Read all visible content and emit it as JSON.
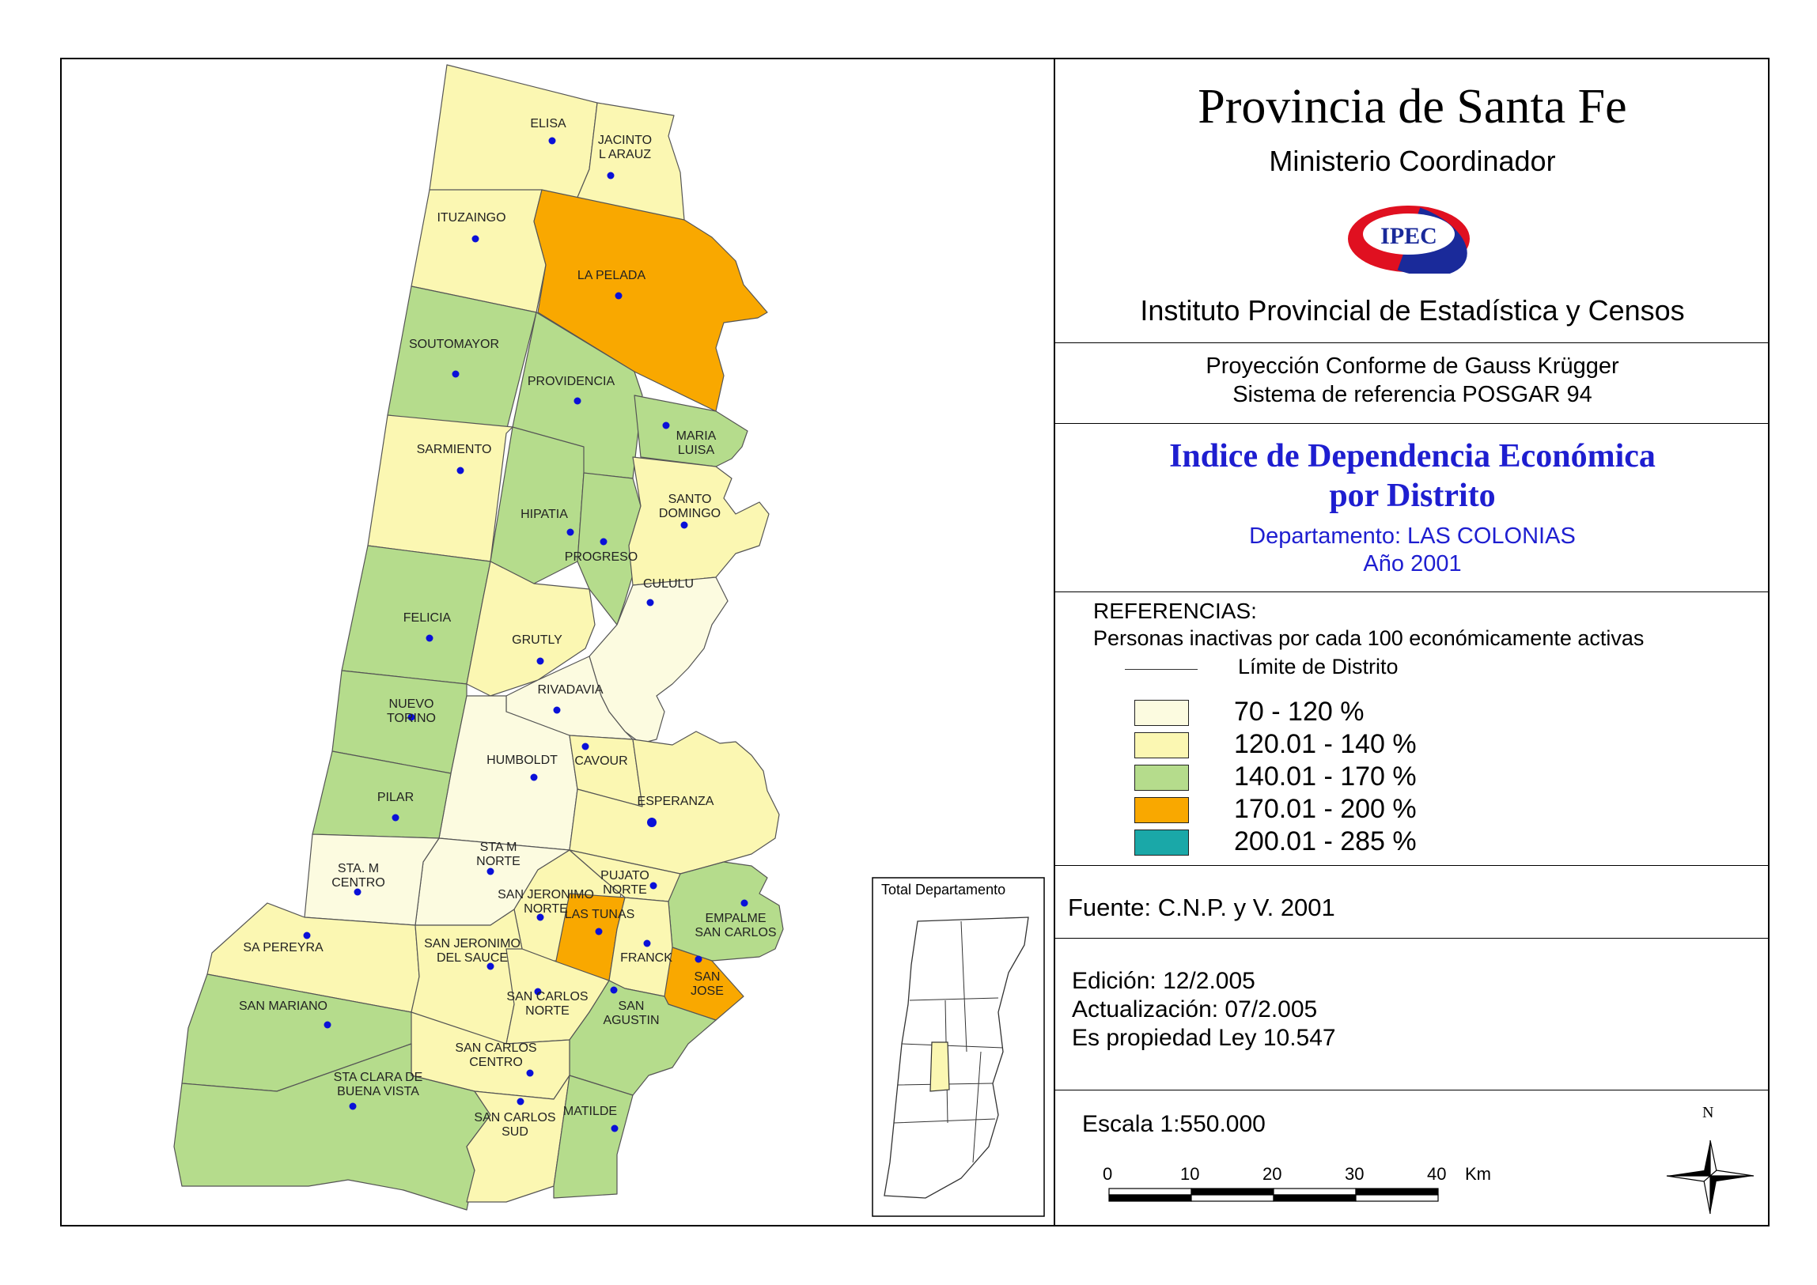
{
  "header": {
    "title": "Provincia de Santa Fe",
    "subtitle": "Ministerio Coordinador",
    "logo_text": "IPEC",
    "institute": "Instituto Provincial de Estadística y Censos"
  },
  "projection": {
    "line1": "Proyección Conforme de Gauss Krügger",
    "line2": "Sistema de referencia POSGAR 94"
  },
  "map_title": {
    "line1": "Indice de Dependencia Económica",
    "line2": "por Distrito",
    "department": "Departamento:  LAS COLONIAS",
    "year": "Año 2001"
  },
  "legend": {
    "heading": "REFERENCIAS:",
    "description": "Personas inactivas por cada 100 económicamente activas",
    "boundary_label": "Límite de  Distrito",
    "classes": [
      {
        "label": "70 - 120 %",
        "color": "#fcfbe0"
      },
      {
        "label": "120.01 - 140 %",
        "color": "#fbf7b2"
      },
      {
        "label": "140.01 - 170 %",
        "color": "#b5dc8c"
      },
      {
        "label": "170.01 - 200 %",
        "color": "#f9a800"
      },
      {
        "label": "200.01 - 285 %",
        "color": "#1aa8a8"
      }
    ]
  },
  "source": "Fuente:  C.N.P. y V. 2001",
  "edition": {
    "edicion": "Edición:  12/2.005",
    "actualizacion": "Actualización:  07/2.005",
    "propiedad": "Es propiedad Ley 10.547"
  },
  "scale": {
    "label": "Escala 1:550.000",
    "ticks": [
      "0",
      "10",
      "20",
      "30",
      "40"
    ],
    "unit": "Km"
  },
  "north": "N",
  "inset": {
    "title": "Total Departamento"
  },
  "districts": [
    {
      "name": "ELISA",
      "class": 1
    },
    {
      "name": "JACINTO L ARAUZ",
      "class": 1,
      "label_lines": [
        "JACINTO",
        "L ARAUZ"
      ]
    },
    {
      "name": "ITUZAINGO",
      "class": 1
    },
    {
      "name": "LA PELADA",
      "class": 3
    },
    {
      "name": "SOUTOMAYOR",
      "class": 2
    },
    {
      "name": "PROVIDENCIA",
      "class": 2
    },
    {
      "name": "MARIA LUISA",
      "class": 2,
      "label_lines": [
        "MARIA",
        "LUISA"
      ]
    },
    {
      "name": "SARMIENTO",
      "class": 1
    },
    {
      "name": "HIPATIA",
      "class": 2
    },
    {
      "name": "PROGRESO",
      "class": 2
    },
    {
      "name": "SANTO DOMINGO",
      "class": 1,
      "label_lines": [
        "SANTO",
        "DOMINGO"
      ]
    },
    {
      "name": "CULULU",
      "class": 0
    },
    {
      "name": "FELICIA",
      "class": 2
    },
    {
      "name": "GRUTLY",
      "class": 1
    },
    {
      "name": "RIVADAVIA",
      "class": 0
    },
    {
      "name": "NUEVO TORINO",
      "class": 2,
      "label_lines": [
        "NUEVO",
        "TORINO"
      ]
    },
    {
      "name": "HUMBOLDT",
      "class": 0
    },
    {
      "name": "CAVOUR",
      "class": 1
    },
    {
      "name": "PILAR",
      "class": 2
    },
    {
      "name": "ESPERANZA",
      "class": 1
    },
    {
      "name": "STA M NORTE",
      "class": 0,
      "label_lines": [
        "STA M",
        "NORTE"
      ]
    },
    {
      "name": "STA. M CENTRO",
      "class": 0,
      "label_lines": [
        "STA. M",
        "CENTRO"
      ]
    },
    {
      "name": "SAN JERONIMO NORTE",
      "class": 1,
      "label_lines": [
        "SAN JERONIMO",
        "NORTE"
      ]
    },
    {
      "name": "PUJATO NORTE",
      "class": 1,
      "label_lines": [
        "PUJATO",
        "NORTE"
      ]
    },
    {
      "name": "LAS TUNAS",
      "class": 3
    },
    {
      "name": "EMPALME SAN CARLOS",
      "class": 2,
      "label_lines": [
        "EMPALME",
        "SAN CARLOS"
      ]
    },
    {
      "name": "SA PEREYRA",
      "class": 1
    },
    {
      "name": "SAN JERONIMO DEL SAUCE",
      "class": 1,
      "label_lines": [
        "SAN JERONIMO",
        "DEL SAUCE"
      ]
    },
    {
      "name": "FRANCK",
      "class": 1
    },
    {
      "name": "SAN JOSE",
      "class": 3,
      "label_lines": [
        "SAN",
        "JOSE"
      ]
    },
    {
      "name": "SAN MARIANO",
      "class": 2
    },
    {
      "name": "SAN CARLOS NORTE",
      "class": 1,
      "label_lines": [
        "SAN CARLOS",
        "NORTE"
      ]
    },
    {
      "name": "SAN AGUSTIN",
      "class": 2,
      "label_lines": [
        "SAN",
        "AGUSTIN"
      ]
    },
    {
      "name": "SAN CARLOS CENTRO",
      "class": 1,
      "label_lines": [
        "SAN CARLOS",
        "CENTRO"
      ]
    },
    {
      "name": "STA CLARA DE BUENA VISTA",
      "class": 2,
      "label_lines": [
        "STA CLARA DE",
        "BUENA VISTA"
      ]
    },
    {
      "name": "SAN CARLOS SUD",
      "class": 1,
      "label_lines": [
        "SAN CARLOS",
        "SUD"
      ]
    },
    {
      "name": "MATILDE",
      "class": 2
    }
  ]
}
